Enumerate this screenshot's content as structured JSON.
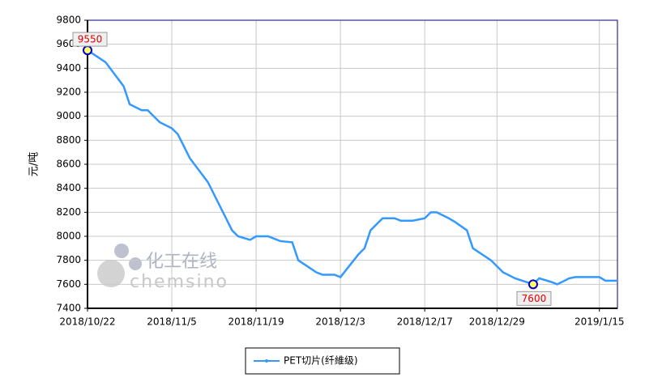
{
  "chart_data": {
    "type": "line",
    "ylabel": "元/吨",
    "x": [
      "2018/10/22",
      "2018/10/25",
      "2018/10/28",
      "2018/10/29",
      "2018/10/31",
      "2018/11/1",
      "2018/11/3",
      "2018/11/5",
      "2018/11/6",
      "2018/11/8",
      "2018/11/11",
      "2018/11/14",
      "2018/11/15",
      "2018/11/16",
      "2018/11/18",
      "2018/11/19",
      "2018/11/21",
      "2018/11/23",
      "2018/11/25",
      "2018/11/26",
      "2018/11/29",
      "2018/11/30",
      "2018/12/2",
      "2018/12/3",
      "2018/12/6",
      "2018/12/7",
      "2018/12/8",
      "2018/12/10",
      "2018/12/12",
      "2018/12/13",
      "2018/12/15",
      "2018/12/17",
      "2018/12/18",
      "2018/12/19",
      "2018/12/21",
      "2018/12/22",
      "2018/12/24",
      "2018/12/25",
      "2018/12/28",
      "2018/12/30",
      "2019/1/1",
      "2019/1/4",
      "2019/1/5",
      "2019/1/7",
      "2019/1/8",
      "2019/1/10",
      "2019/1/11",
      "2019/1/15",
      "2019/1/16",
      "2019/1/18"
    ],
    "series": [
      {
        "name": "PET切片(纤維级)",
        "color": "#3399ff",
        "values": [
          9550,
          9450,
          9250,
          9100,
          9050,
          9050,
          8950,
          8900,
          8850,
          8650,
          8450,
          8150,
          8050,
          8000,
          7970,
          8000,
          8000,
          7960,
          7950,
          7800,
          7700,
          7680,
          7680,
          7660,
          7850,
          7900,
          8050,
          8150,
          8150,
          8130,
          8130,
          8150,
          8200,
          8200,
          8150,
          8120,
          8050,
          7900,
          7800,
          7700,
          7650,
          7600,
          7650,
          7620,
          7600,
          7650,
          7660,
          7660,
          7630,
          7630
        ]
      }
    ],
    "annotations": [
      {
        "x": "2018/10/22",
        "y": 9550
      },
      {
        "x": "2019/1/4",
        "y": 7600
      }
    ],
    "xlim": [
      "2018/10/22",
      "2019/1/18"
    ],
    "xticks": [
      "2018/10/22",
      "2018/11/5",
      "2018/11/19",
      "2018/12/3",
      "2018/12/17",
      "2018/12/29",
      "2019/1/15"
    ],
    "ylim": [
      7400,
      9800
    ],
    "yticks": [
      7400,
      7600,
      7800,
      8000,
      8200,
      8400,
      8600,
      8800,
      9000,
      9200,
      9400,
      9600,
      9800
    ],
    "grid": true,
    "watermark": {
      "cn": "化工在线",
      "en": "chemsino"
    }
  }
}
